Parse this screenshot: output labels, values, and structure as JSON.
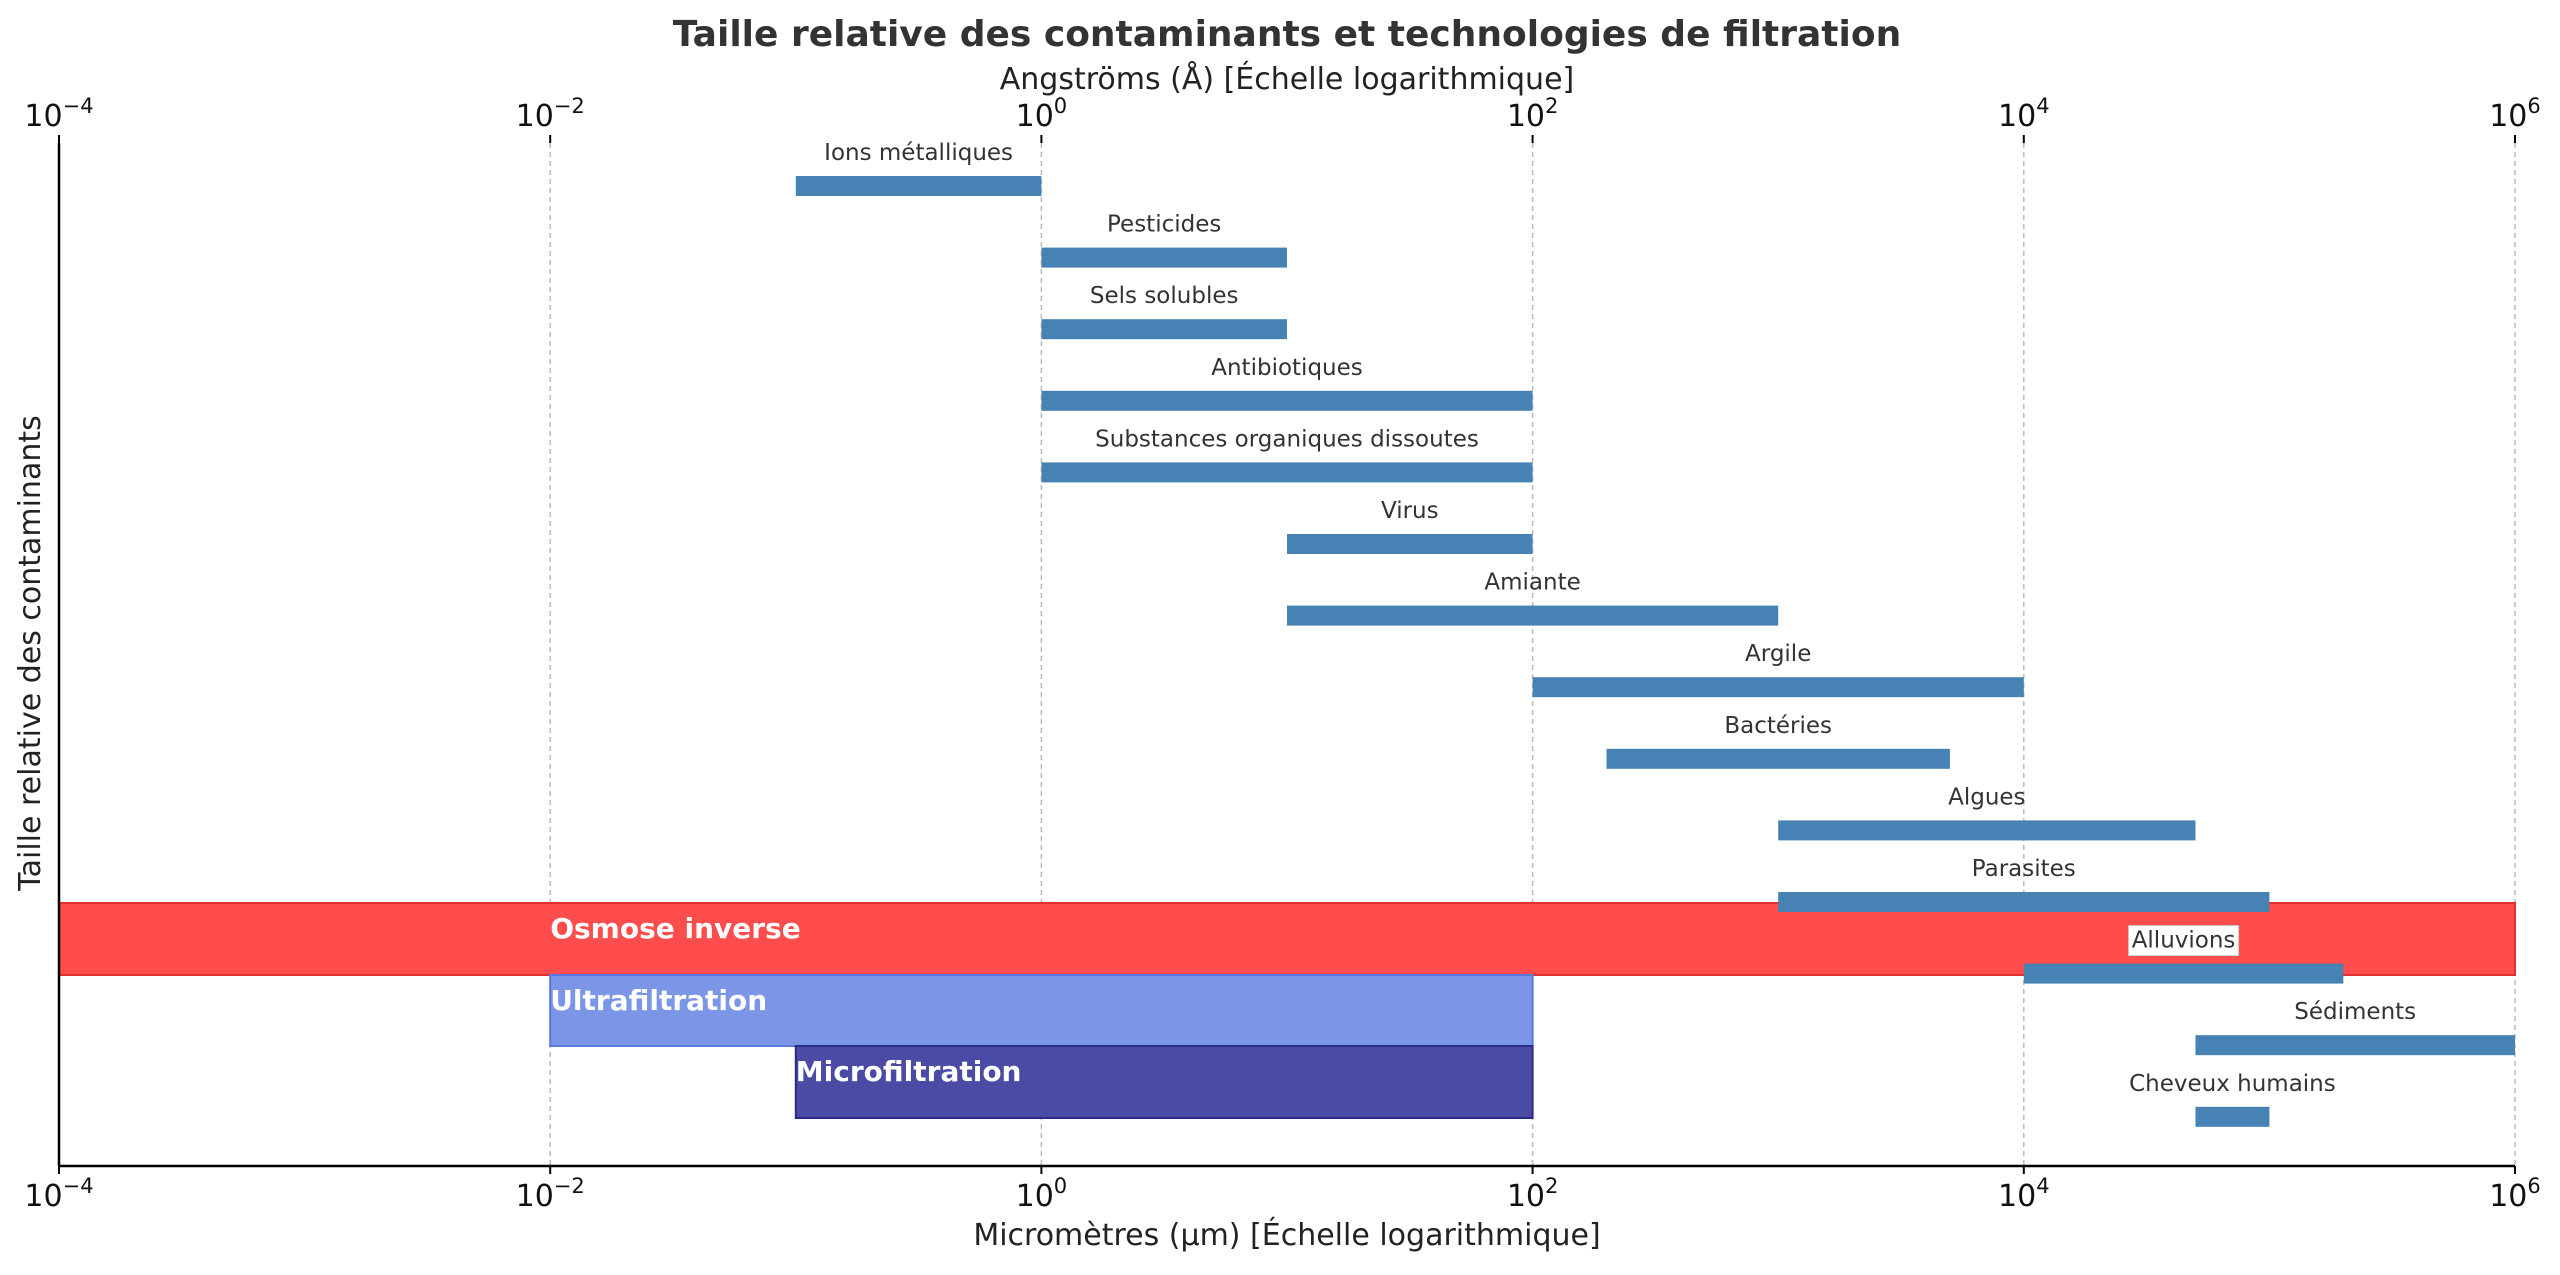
{
  "chart_data": {
    "type": "bar",
    "orientation": "horizontal-range",
    "title": "Taille relative des contaminants et technologies de filtration",
    "xlabel": "Micromètres (µm) [Échelle logarithmique]",
    "xlabel_top": "Angströms (Å) [Échelle logarithmique]",
    "ylabel": "Taille relative des contaminants",
    "x_scale": "log",
    "xlim": [
      0.0001,
      1000000
    ],
    "grid": "vertical-dashed",
    "colors": {
      "bar": "#4682b4",
      "osmose": "#ff4c4c",
      "ultrafiltration": "#7b96e6",
      "microfiltration": "#4b4ba5",
      "grid": "#bbbbbb",
      "text": "#333333"
    },
    "x_ticks": [
      {
        "value": 0.0001,
        "base": "10",
        "exp": "−4"
      },
      {
        "value": 0.01,
        "base": "10",
        "exp": "−2"
      },
      {
        "value": 1,
        "base": "10",
        "exp": "0"
      },
      {
        "value": 100,
        "base": "10",
        "exp": "2"
      },
      {
        "value": 10000,
        "base": "10",
        "exp": "4"
      },
      {
        "value": 1000000,
        "base": "10",
        "exp": "6"
      }
    ],
    "contaminants": [
      {
        "name": "Ions métalliques",
        "min": 0.1,
        "max": 1
      },
      {
        "name": "Pesticides",
        "min": 1,
        "max": 10
      },
      {
        "name": "Sels solubles",
        "min": 1,
        "max": 10
      },
      {
        "name": "Antibiotiques",
        "min": 1,
        "max": 100
      },
      {
        "name": "Substances organiques dissoutes",
        "min": 1,
        "max": 100
      },
      {
        "name": "Virus",
        "min": 10,
        "max": 100
      },
      {
        "name": "Amiante",
        "min": 10,
        "max": 1000
      },
      {
        "name": "Argile",
        "min": 100,
        "max": 10000
      },
      {
        "name": "Bactéries",
        "min": 200,
        "max": 5000
      },
      {
        "name": "Algues",
        "min": 1000,
        "max": 50000
      },
      {
        "name": "Parasites",
        "min": 1000,
        "max": 100000
      },
      {
        "name": "Alluvions",
        "min": 10000,
        "max": 200000
      },
      {
        "name": "Sédiments",
        "min": 50000,
        "max": 1000000
      },
      {
        "name": "Cheveux humains",
        "min": 50000,
        "max": 100000
      }
    ],
    "technologies": [
      {
        "name": "Osmose inverse",
        "min": 0.0001,
        "max": 1000000,
        "color": "#ff4c4c"
      },
      {
        "name": "Ultrafiltration",
        "min": 0.01,
        "max": 100,
        "color": "#7b96e6"
      },
      {
        "name": "Microfiltration",
        "min": 0.1,
        "max": 100,
        "color": "#4b4ba5"
      }
    ]
  }
}
